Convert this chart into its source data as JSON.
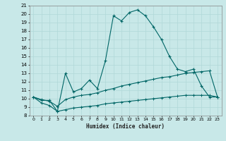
{
  "xlabel": "Humidex (Indice chaleur)",
  "background_color": "#c8e8e8",
  "line_color": "#006666",
  "grid_color": "#b0d8d8",
  "xlim": [
    -0.5,
    23.5
  ],
  "ylim": [
    8,
    21
  ],
  "xticks": [
    0,
    1,
    2,
    3,
    4,
    5,
    6,
    7,
    8,
    9,
    10,
    11,
    12,
    13,
    14,
    15,
    16,
    17,
    18,
    19,
    20,
    21,
    22,
    23
  ],
  "yticks": [
    8,
    9,
    10,
    11,
    12,
    13,
    14,
    15,
    16,
    17,
    18,
    19,
    20,
    21
  ],
  "line1_x": [
    0,
    1,
    2,
    3,
    4,
    5,
    6,
    7,
    8,
    9,
    10,
    11,
    12,
    13,
    14,
    15,
    16,
    17,
    18,
    19,
    20,
    21,
    22,
    23
  ],
  "line1_y": [
    10.2,
    9.8,
    9.8,
    8.5,
    13.0,
    10.8,
    11.2,
    12.2,
    11.2,
    14.5,
    19.8,
    19.2,
    20.2,
    20.5,
    19.8,
    18.5,
    17.0,
    15.0,
    13.5,
    13.2,
    13.5,
    11.5,
    10.2,
    10.2
  ],
  "line2_x": [
    0,
    1,
    2,
    3,
    4,
    5,
    6,
    7,
    8,
    9,
    10,
    11,
    12,
    13,
    14,
    15,
    16,
    17,
    18,
    19,
    20,
    21,
    22,
    23
  ],
  "line2_y": [
    10.2,
    9.9,
    9.7,
    9.1,
    9.9,
    10.2,
    10.4,
    10.5,
    10.7,
    11.0,
    11.2,
    11.5,
    11.7,
    11.9,
    12.1,
    12.3,
    12.5,
    12.6,
    12.8,
    13.0,
    13.1,
    13.2,
    13.3,
    10.2
  ],
  "line3_x": [
    0,
    1,
    2,
    3,
    4,
    5,
    6,
    7,
    8,
    9,
    10,
    11,
    12,
    13,
    14,
    15,
    16,
    17,
    18,
    19,
    20,
    21,
    22,
    23
  ],
  "line3_y": [
    10.2,
    9.5,
    9.2,
    8.5,
    8.7,
    8.9,
    9.0,
    9.1,
    9.2,
    9.4,
    9.5,
    9.6,
    9.7,
    9.8,
    9.9,
    10.0,
    10.1,
    10.2,
    10.3,
    10.4,
    10.4,
    10.4,
    10.4,
    10.2
  ],
  "fig_width": 3.2,
  "fig_height": 2.0,
  "dpi": 100
}
